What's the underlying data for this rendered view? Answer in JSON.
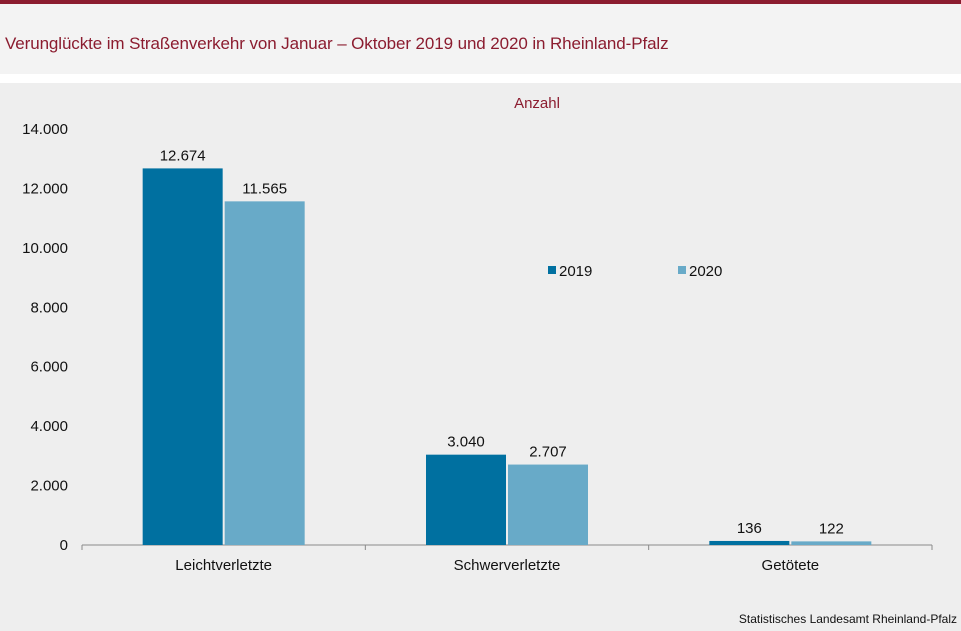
{
  "header": {
    "title": "Verunglückte im Straßenverkehr von Januar – Oktober 2019 und 2020 in Rheinland-Pfalz"
  },
  "footer": {
    "source": "Statistisches Landesamt  Rheinland-Pfalz"
  },
  "colors": {
    "accent": "#8b1c2f",
    "series_2019": "#0070a0",
    "series_2020": "#68aac8"
  },
  "chart_data": {
    "type": "bar",
    "title": "",
    "unit_label": "Anzahl",
    "xlabel": "",
    "ylabel": "",
    "categories": [
      "Leichtverletzte",
      "Schwerverletzte",
      "Getötete"
    ],
    "series": [
      {
        "name": "2019",
        "values": [
          12674,
          3040,
          136
        ],
        "labels": [
          "12.674",
          "3.040",
          "136"
        ]
      },
      {
        "name": "2020",
        "values": [
          11565,
          2707,
          122
        ],
        "labels": [
          "11.565",
          "2.707",
          "122"
        ]
      }
    ],
    "ylim": [
      0,
      14000
    ],
    "yticks": [
      0,
      2000,
      4000,
      6000,
      8000,
      10000,
      12000,
      14000
    ],
    "ytick_labels": [
      "0",
      "2.000",
      "4.000",
      "6.000",
      "8.000",
      "10.000",
      "12.000",
      "14.000"
    ],
    "grid": false,
    "legend_position": "center-right"
  }
}
